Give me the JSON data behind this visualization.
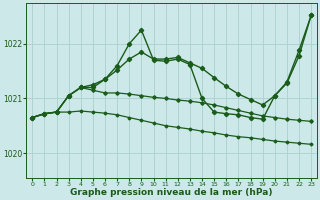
{
  "bg_color": "#cce8e8",
  "grid_color": "#aad0d0",
  "line_color": "#1a5c1a",
  "xlabel": "Graphe pression niveau de la mer (hPa)",
  "xlabel_fontsize": 6.5,
  "ylabel_ticks": [
    1020,
    1021,
    1022
  ],
  "xlim": [
    -0.5,
    23.5
  ],
  "ylim": [
    1019.55,
    1022.75
  ],
  "xticks": [
    0,
    1,
    2,
    3,
    4,
    5,
    6,
    7,
    8,
    9,
    10,
    11,
    12,
    13,
    14,
    15,
    16,
    17,
    18,
    19,
    20,
    21,
    22,
    23
  ],
  "series": [
    {
      "x": [
        0,
        1,
        2,
        3,
        4,
        5,
        6,
        7,
        8,
        9,
        10,
        11,
        12,
        13,
        14,
        15,
        16,
        17,
        18,
        19,
        20,
        21,
        22,
        23
      ],
      "y": [
        1020.65,
        1020.72,
        1020.75,
        1020.75,
        1020.77,
        1020.75,
        1020.73,
        1020.7,
        1020.65,
        1020.6,
        1020.55,
        1020.5,
        1020.47,
        1020.44,
        1020.4,
        1020.37,
        1020.33,
        1020.3,
        1020.28,
        1020.25,
        1020.22,
        1020.2,
        1020.18,
        1020.16
      ],
      "marker": "D",
      "markersize": 1.5,
      "linewidth": 0.9
    },
    {
      "x": [
        0,
        1,
        2,
        3,
        4,
        5,
        6,
        7,
        8,
        9,
        10,
        11,
        12,
        13,
        14,
        15,
        16,
        17,
        18,
        19,
        20,
        21,
        22,
        23
      ],
      "y": [
        1020.65,
        1020.72,
        1020.75,
        1021.05,
        1021.2,
        1021.15,
        1021.1,
        1021.1,
        1021.08,
        1021.05,
        1021.02,
        1021.0,
        1020.97,
        1020.95,
        1020.92,
        1020.88,
        1020.83,
        1020.78,
        1020.73,
        1020.68,
        1020.65,
        1020.62,
        1020.6,
        1020.58
      ],
      "marker": "D",
      "markersize": 1.8,
      "linewidth": 0.9
    },
    {
      "x": [
        0,
        1,
        2,
        3,
        4,
        5,
        6,
        7,
        8,
        9,
        10,
        11,
        12,
        13,
        14,
        15,
        16,
        17,
        18,
        19,
        20,
        21,
        22,
        23
      ],
      "y": [
        1020.65,
        1020.72,
        1020.75,
        1021.05,
        1021.2,
        1021.2,
        1021.35,
        1021.6,
        1022.0,
        1022.25,
        1021.7,
        1021.68,
        1021.72,
        1021.62,
        1021.0,
        1020.75,
        1020.72,
        1020.7,
        1020.65,
        1020.62,
        1021.05,
        1021.3,
        1021.88,
        1022.52
      ],
      "marker": "D",
      "markersize": 2.2,
      "linewidth": 1.0
    },
    {
      "x": [
        0,
        1,
        2,
        3,
        4,
        5,
        6,
        7,
        8,
        9,
        10,
        11,
        12,
        13,
        14,
        15,
        16,
        17,
        18,
        19,
        20,
        21,
        22,
        23
      ],
      "y": [
        1020.65,
        1020.72,
        1020.75,
        1021.05,
        1021.2,
        1021.25,
        1021.35,
        1021.52,
        1021.72,
        1021.85,
        1021.72,
        1021.72,
        1021.75,
        1021.65,
        1021.55,
        1021.38,
        1021.22,
        1021.08,
        1020.98,
        1020.88,
        1021.05,
        1021.28,
        1021.78,
        1022.52
      ],
      "marker": "D",
      "markersize": 2.2,
      "linewidth": 1.0
    }
  ]
}
